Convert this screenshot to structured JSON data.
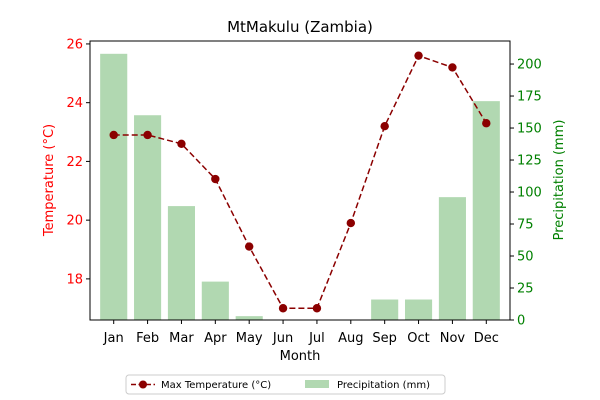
{
  "chart_data": {
    "type": "bar+line",
    "title": "MtMakulu (Zambia)",
    "xlabel": "Month",
    "categories": [
      "Jan",
      "Feb",
      "Mar",
      "Apr",
      "May",
      "Jun",
      "Jul",
      "Aug",
      "Sep",
      "Oct",
      "Nov",
      "Dec"
    ],
    "temperature": {
      "name": "Max Temperature (°C)",
      "axis_label": "Temperature (°C)",
      "color": "#8b0000",
      "axis_color": "#ff0000",
      "ylim": [
        16.6,
        26.1
      ],
      "ticks": [
        18,
        20,
        22,
        24,
        26
      ],
      "values": [
        22.9,
        22.9,
        22.6,
        21.4,
        19.1,
        17.0,
        17.0,
        19.9,
        23.2,
        25.6,
        25.2,
        23.3
      ]
    },
    "precipitation": {
      "name": "Precipitation (mm)",
      "axis_label": "Precipitation (mm)",
      "color": "#b1d8b1",
      "axis_color": "#008000",
      "ylim": [
        0,
        218
      ],
      "ticks": [
        0,
        25,
        50,
        75,
        100,
        125,
        150,
        175,
        200
      ],
      "values": [
        208,
        160,
        89,
        30,
        3,
        0,
        0,
        0,
        16,
        16,
        96,
        171
      ]
    },
    "legend_placement": "bottom-center",
    "grid": false
  }
}
